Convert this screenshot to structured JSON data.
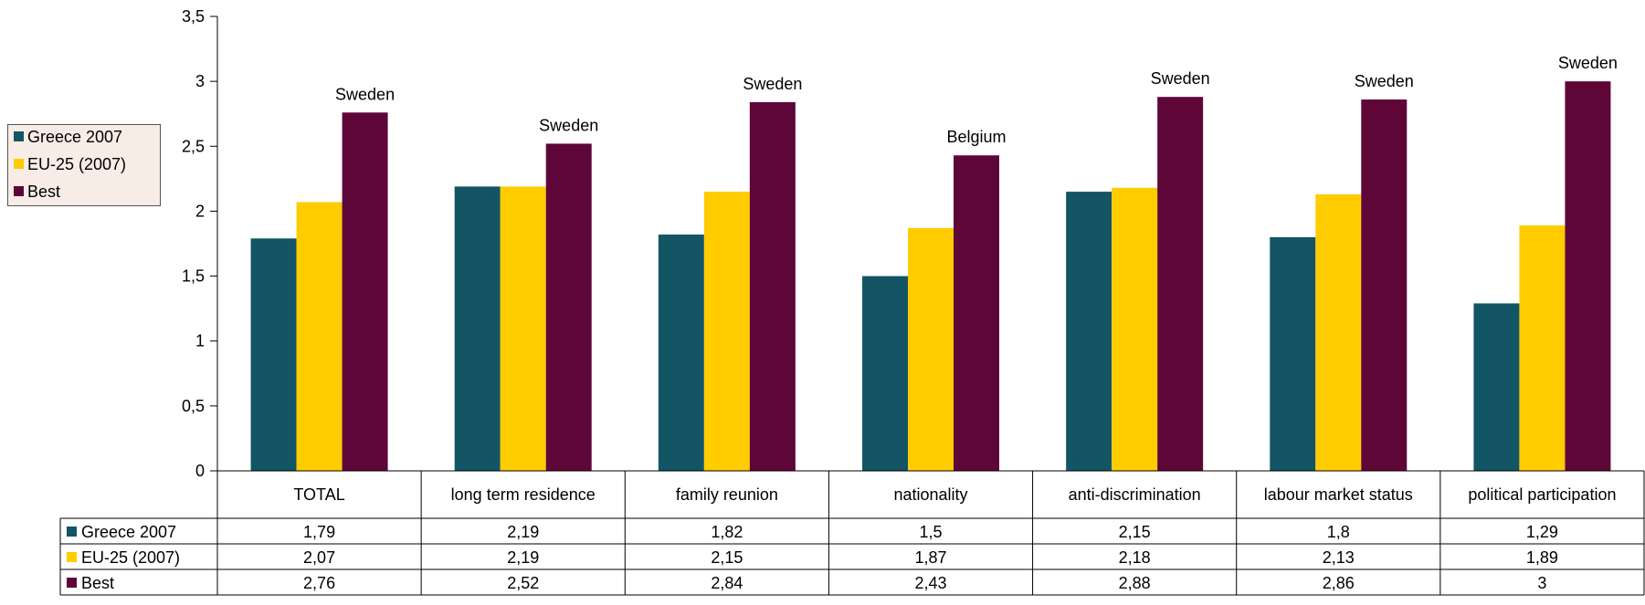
{
  "chart_data": {
    "type": "bar",
    "categories": [
      "TOTAL",
      "long term residence",
      "family reunion",
      "nationality",
      "anti-discrimination",
      "labour market status",
      "political participation"
    ],
    "series": [
      {
        "name": "Greece 2007",
        "color": "#135564",
        "values": [
          1.79,
          2.19,
          1.82,
          1.5,
          2.15,
          1.8,
          1.29
        ],
        "value_labels": [
          "1,79",
          "2,19",
          "1,82",
          "1,5",
          "2,15",
          "1,8",
          "1,29"
        ]
      },
      {
        "name": "EU-25 (2007)",
        "color": "#ffcc00",
        "values": [
          2.07,
          2.19,
          2.15,
          1.87,
          2.18,
          2.13,
          1.89
        ],
        "value_labels": [
          "2,07",
          "2,19",
          "2,15",
          "1,87",
          "2,18",
          "2,13",
          "1,89"
        ]
      },
      {
        "name": "Best",
        "color": "#5f0638",
        "values": [
          2.76,
          2.52,
          2.84,
          2.43,
          2.88,
          2.86,
          3
        ],
        "value_labels": [
          "2,76",
          "2,52",
          "2,84",
          "2,43",
          "2,88",
          "2,86",
          "3"
        ]
      }
    ],
    "best_labels": [
      "Sweden",
      "Sweden",
      "Sweden",
      "Belgium",
      "Sweden",
      "Sweden",
      "Sweden"
    ],
    "yticks": [
      "0",
      "0,5",
      "1",
      "1,5",
      "2",
      "2,5",
      "3",
      "3,5"
    ],
    "ylim": [
      0,
      3.5
    ],
    "legend_position": "left",
    "data_table": true
  }
}
